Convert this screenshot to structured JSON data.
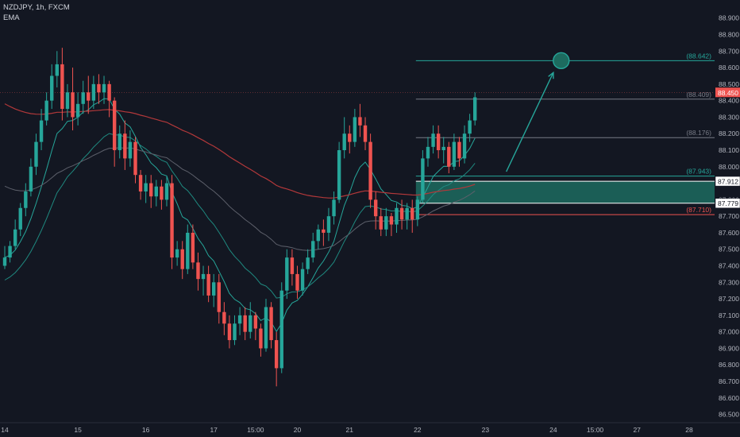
{
  "legend": {
    "symbol_line": "NZDJPY, 1h, FXCM",
    "indicator": "EMA"
  },
  "colors": {
    "background": "#131722",
    "up": "#26a69a",
    "down": "#ef5350",
    "ema_fast": "#26a69a",
    "ema_mid": "#1f8a80",
    "ema_slow": "#5d606b",
    "ema_long": "#b2383a",
    "zone_fill": "#1d6b5f",
    "projection": "#26a69a",
    "axis_text": "#b2b5be"
  },
  "chart_data": {
    "type": "candlestick",
    "symbol": "NZDJPY",
    "timeframe": "1h",
    "source": "FXCM",
    "ylim": [
      86.45,
      88.99
    ],
    "y_ticks": [
      "88.900",
      "88.800",
      "88.700",
      "88.600",
      "88.500",
      "88.400",
      "88.300",
      "88.200",
      "88.100",
      "88.000",
      "87.900",
      "87.800",
      "87.700",
      "87.600",
      "87.500",
      "87.400",
      "87.300",
      "87.200",
      "87.100",
      "87.000",
      "86.900",
      "86.800",
      "86.700",
      "86.600",
      "86.500"
    ],
    "x_ticks": [
      {
        "label": "14",
        "index": 0
      },
      {
        "label": "15",
        "index": 14
      },
      {
        "label": "16",
        "index": 27
      },
      {
        "label": "17",
        "index": 40
      },
      {
        "label": "15:00",
        "index": 48
      },
      {
        "label": "20",
        "index": 56
      },
      {
        "label": "21",
        "index": 66
      },
      {
        "label": "22",
        "index": 79
      },
      {
        "label": "23",
        "index": 92
      },
      {
        "label": "24",
        "index": 105
      },
      {
        "label": "15:00",
        "index": 113
      },
      {
        "label": "27",
        "index": 121
      },
      {
        "label": "28",
        "index": 131
      }
    ],
    "candles": [
      [
        87.45,
        87.4,
        87.38,
        87.52
      ],
      [
        87.52,
        87.45,
        87.42,
        87.55
      ],
      [
        87.62,
        87.52,
        87.5,
        87.68
      ],
      [
        87.75,
        87.62,
        87.58,
        87.78
      ],
      [
        87.85,
        87.75,
        87.7,
        87.9
      ],
      [
        88.0,
        87.85,
        87.82,
        88.05
      ],
      [
        88.15,
        88.0,
        87.95,
        88.2
      ],
      [
        88.28,
        88.15,
        88.1,
        88.35
      ],
      [
        88.4,
        88.28,
        88.25,
        88.45
      ],
      [
        88.55,
        88.4,
        88.35,
        88.62
      ],
      [
        88.62,
        88.55,
        88.48,
        88.7
      ],
      [
        88.35,
        88.62,
        88.28,
        88.72
      ],
      [
        88.45,
        88.35,
        88.3,
        88.5
      ],
      [
        88.3,
        88.45,
        88.22,
        88.6
      ],
      [
        88.38,
        88.3,
        88.25,
        88.45
      ],
      [
        88.45,
        88.38,
        88.32,
        88.52
      ],
      [
        88.4,
        88.45,
        88.32,
        88.55
      ],
      [
        88.5,
        88.4,
        88.35,
        88.55
      ],
      [
        88.45,
        88.5,
        88.38,
        88.56
      ],
      [
        88.5,
        88.45,
        88.38,
        88.55
      ],
      [
        88.4,
        88.5,
        88.3,
        88.52
      ],
      [
        88.1,
        88.4,
        88.0,
        88.42
      ],
      [
        88.2,
        88.1,
        88.05,
        88.25
      ],
      [
        88.05,
        88.2,
        87.98,
        88.28
      ],
      [
        88.15,
        88.05,
        88.0,
        88.22
      ],
      [
        87.95,
        88.15,
        87.9,
        88.18
      ],
      [
        87.85,
        87.95,
        87.8,
        87.98
      ],
      [
        87.9,
        87.85,
        87.78,
        87.95
      ],
      [
        87.82,
        87.9,
        87.75,
        87.95
      ],
      [
        87.88,
        87.82,
        87.76,
        87.92
      ],
      [
        87.8,
        87.88,
        87.74,
        87.92
      ],
      [
        87.9,
        87.8,
        87.76,
        87.94
      ],
      [
        87.45,
        87.9,
        87.38,
        87.95
      ],
      [
        87.5,
        87.45,
        87.4,
        87.55
      ],
      [
        87.38,
        87.5,
        87.32,
        87.55
      ],
      [
        87.6,
        87.38,
        87.35,
        87.65
      ],
      [
        87.42,
        87.6,
        87.38,
        87.65
      ],
      [
        87.32,
        87.42,
        87.25,
        87.48
      ],
      [
        87.35,
        87.32,
        87.22,
        87.4
      ],
      [
        87.22,
        87.35,
        87.18,
        87.4
      ],
      [
        87.3,
        87.22,
        87.15,
        87.35
      ],
      [
        87.12,
        87.3,
        87.05,
        87.35
      ],
      [
        87.05,
        87.12,
        86.98,
        87.18
      ],
      [
        86.95,
        87.05,
        86.9,
        87.1
      ],
      [
        87.05,
        86.95,
        86.92,
        87.1
      ],
      [
        87.1,
        87.05,
        86.98,
        87.15
      ],
      [
        87.0,
        87.1,
        86.95,
        87.15
      ],
      [
        87.1,
        87.0,
        86.96,
        87.18
      ],
      [
        87.02,
        87.1,
        86.95,
        87.12
      ],
      [
        86.9,
        87.02,
        86.85,
        87.05
      ],
      [
        87.15,
        86.9,
        86.88,
        87.2
      ],
      [
        86.95,
        87.15,
        86.9,
        87.18
      ],
      [
        86.78,
        86.95,
        86.67,
        87.0
      ],
      [
        87.25,
        86.78,
        86.75,
        87.3
      ],
      [
        87.45,
        87.25,
        87.2,
        87.5
      ],
      [
        87.35,
        87.45,
        87.28,
        87.5
      ],
      [
        87.25,
        87.35,
        87.2,
        87.4
      ],
      [
        87.38,
        87.25,
        87.22,
        87.42
      ],
      [
        87.45,
        87.38,
        87.35,
        87.5
      ],
      [
        87.55,
        87.45,
        87.42,
        87.6
      ],
      [
        87.62,
        87.55,
        87.5,
        87.65
      ],
      [
        87.6,
        87.62,
        87.52,
        87.68
      ],
      [
        87.7,
        87.6,
        87.55,
        87.75
      ],
      [
        87.8,
        87.7,
        87.65,
        87.85
      ],
      [
        88.1,
        87.8,
        87.78,
        88.15
      ],
      [
        88.2,
        88.1,
        88.05,
        88.3
      ],
      [
        88.15,
        88.2,
        88.08,
        88.25
      ],
      [
        88.3,
        88.15,
        88.12,
        88.35
      ],
      [
        88.25,
        88.3,
        88.18,
        88.38
      ],
      [
        88.15,
        88.25,
        88.1,
        88.3
      ],
      [
        87.8,
        88.15,
        87.75,
        88.2
      ],
      [
        87.7,
        87.8,
        87.62,
        87.85
      ],
      [
        87.62,
        87.7,
        87.58,
        87.75
      ],
      [
        87.7,
        87.62,
        87.58,
        87.75
      ],
      [
        87.65,
        87.7,
        87.58,
        87.72
      ],
      [
        87.75,
        87.65,
        87.6,
        87.78
      ],
      [
        87.68,
        87.75,
        87.62,
        87.8
      ],
      [
        87.75,
        87.68,
        87.62,
        87.78
      ],
      [
        87.68,
        87.75,
        87.6,
        87.8
      ],
      [
        87.8,
        87.68,
        87.64,
        87.82
      ],
      [
        88.05,
        87.8,
        87.78,
        88.1
      ],
      [
        88.12,
        88.05,
        88.0,
        88.18
      ],
      [
        88.2,
        88.12,
        88.08,
        88.25
      ],
      [
        88.1,
        88.2,
        88.05,
        88.25
      ],
      [
        88.12,
        88.1,
        88.02,
        88.18
      ],
      [
        88.0,
        88.12,
        87.96,
        88.15
      ],
      [
        88.15,
        88.0,
        87.98,
        88.2
      ],
      [
        88.05,
        88.15,
        88.0,
        88.18
      ],
      [
        88.2,
        88.05,
        88.02,
        88.25
      ],
      [
        88.28,
        88.2,
        88.15,
        88.32
      ],
      [
        88.42,
        88.28,
        88.25,
        88.45
      ]
    ],
    "levels": [
      {
        "label": "(88.642)",
        "price": 88.642,
        "color": "#26a69a"
      },
      {
        "label": "(88.409)",
        "price": 88.409,
        "color": "#787b86"
      },
      {
        "label": "(88.176)",
        "price": 88.176,
        "color": "#787b86"
      },
      {
        "label": "(87.943)",
        "price": 87.943,
        "color": "#26a69a"
      },
      {
        "label": "(87.710)",
        "price": 87.71,
        "color": "#ef5350"
      }
    ],
    "zone": {
      "top": 87.912,
      "bottom": 87.779,
      "start_index": 79
    },
    "price_badges": [
      {
        "label": "88.450",
        "price": 88.45,
        "style": "current"
      },
      {
        "label": "87.912",
        "price": 87.912,
        "style": "boxed"
      },
      {
        "label": "87.779",
        "price": 87.779,
        "style": "boxed"
      }
    ],
    "projection": {
      "from_index": 96,
      "from_price": 87.97,
      "to_index": 105,
      "to_price": 88.57
    },
    "target_marker": {
      "index": 106.5,
      "price": 88.642
    }
  }
}
